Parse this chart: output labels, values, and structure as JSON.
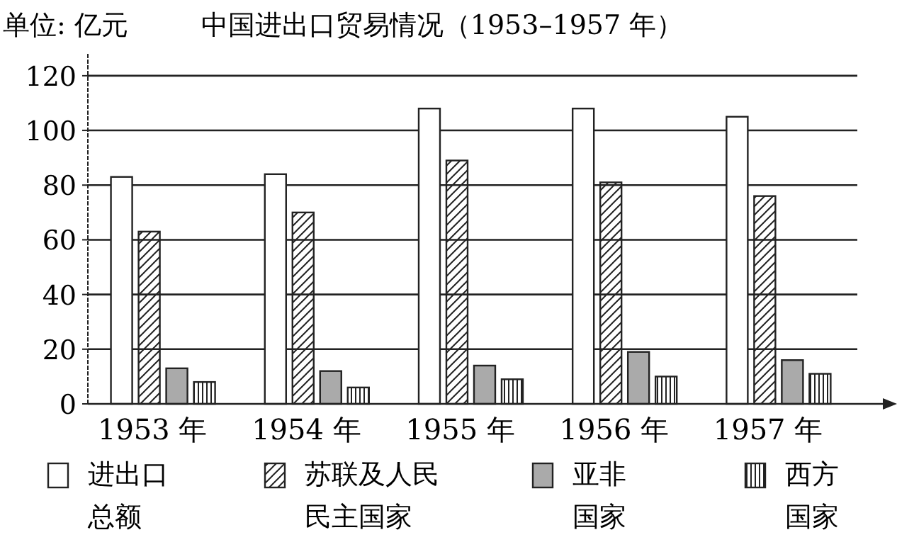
{
  "chart_data": {
    "type": "bar",
    "title": "中国进出口贸易情况（1953–1957 年）",
    "ylabel": "单位: 亿元",
    "categories": [
      "1953 年",
      "1954 年",
      "1955 年",
      "1956 年",
      "1957 年"
    ],
    "series": [
      {
        "name": "进出口总额",
        "color": "#ffffff",
        "values": [
          83,
          84,
          108,
          108,
          105
        ]
      },
      {
        "name": "苏联及人民民主国家",
        "color": "#222222",
        "values": [
          63,
          70,
          89,
          81,
          76
        ]
      },
      {
        "name": "亚非国家",
        "color": "#aaaaaa",
        "values": [
          13,
          12,
          14,
          19,
          16
        ]
      },
      {
        "name": "西方国家",
        "color": "#222222",
        "values": [
          8,
          6,
          9,
          10,
          11
        ]
      }
    ],
    "ylim": [
      0,
      128
    ],
    "yticks": [
      0,
      20,
      40,
      60,
      80,
      100,
      120
    ],
    "grid": "y",
    "legend": "bottom"
  }
}
